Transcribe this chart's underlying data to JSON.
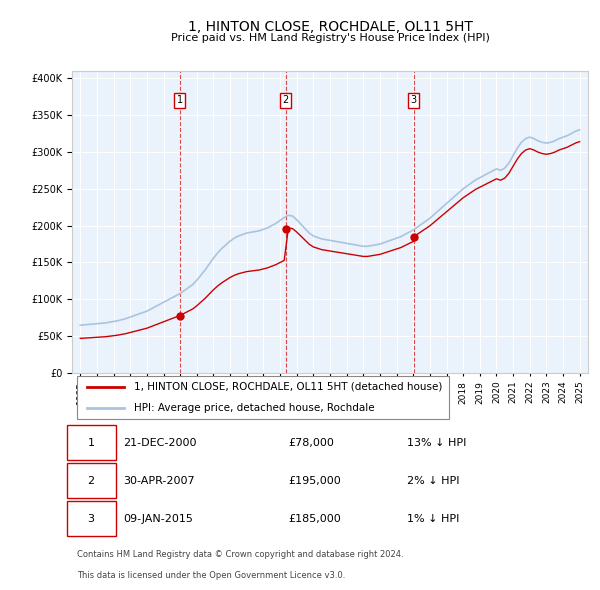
{
  "title": "1, HINTON CLOSE, ROCHDALE, OL11 5HT",
  "subtitle": "Price paid vs. HM Land Registry's House Price Index (HPI)",
  "legend_line1": "1, HINTON CLOSE, ROCHDALE, OL11 5HT (detached house)",
  "legend_line2": "HPI: Average price, detached house, Rochdale",
  "transactions": [
    {
      "num": 1,
      "date": "21-DEC-2000",
      "price": 78000,
      "hpi_diff": "13% ↓ HPI",
      "x_year": 2000.97
    },
    {
      "num": 2,
      "date": "30-APR-2007",
      "price": 195000,
      "hpi_diff": "2% ↓ HPI",
      "x_year": 2007.33
    },
    {
      "num": 3,
      "date": "09-JAN-2015",
      "price": 185000,
      "hpi_diff": "1% ↓ HPI",
      "x_year": 2015.03
    }
  ],
  "footer1": "Contains HM Land Registry data © Crown copyright and database right 2024.",
  "footer2": "This data is licensed under the Open Government Licence v3.0.",
  "hpi_color": "#aac4e0",
  "price_color": "#cc0000",
  "vline_color": "#cc0000",
  "bg_color": "#eaf2fb",
  "grid_color": "#ffffff",
  "ylim": [
    0,
    410000
  ],
  "yticks": [
    0,
    50000,
    100000,
    150000,
    200000,
    250000,
    300000,
    350000,
    400000
  ],
  "xlim_start": 1994.5,
  "xlim_end": 2025.5
}
